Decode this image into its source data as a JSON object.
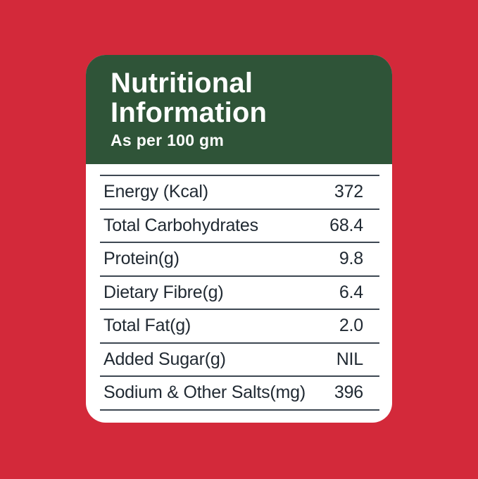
{
  "background_color": "#d3293a",
  "card": {
    "background_color": "#ffffff",
    "header": {
      "title": "Nutritional Information",
      "subtitle": "As per 100 gm",
      "background_color": "#2f5438",
      "text_color": "#ffffff"
    },
    "table": {
      "text_color": "#212a33",
      "divider_color": "#3d4752",
      "rows": [
        {
          "label": "Energy (Kcal)",
          "value": "372"
        },
        {
          "label": "Total Carbohydrates",
          "value": "68.4"
        },
        {
          "label": "Protein(g)",
          "value": "9.8"
        },
        {
          "label": "Dietary Fibre(g)",
          "value": "6.4"
        },
        {
          "label": "Total Fat(g)",
          "value": "2.0"
        },
        {
          "label": "Added Sugar(g)",
          "value": "NIL"
        },
        {
          "label": "Sodium & Other Salts(mg)",
          "value": "396"
        }
      ]
    }
  }
}
